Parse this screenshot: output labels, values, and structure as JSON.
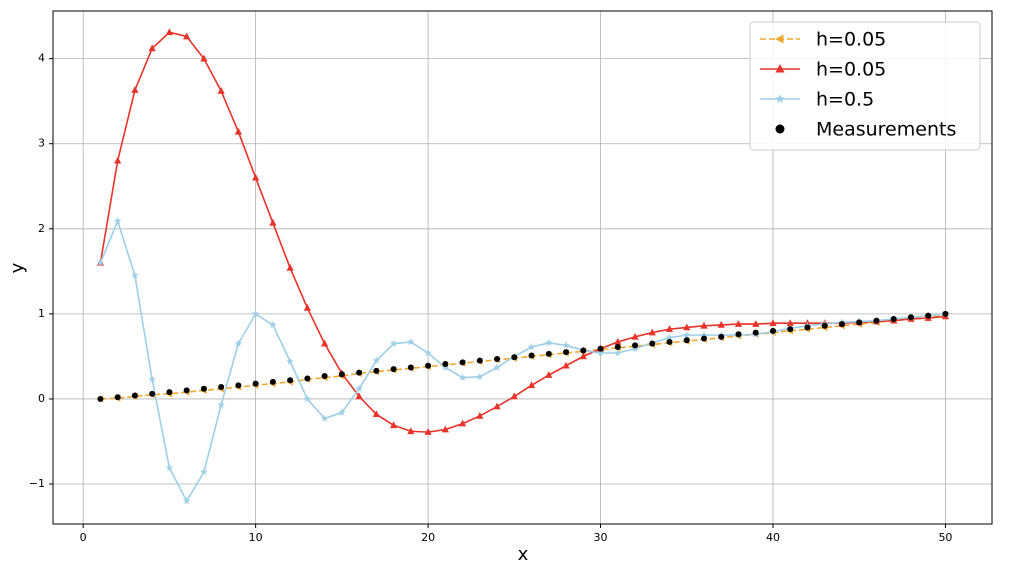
{
  "chart_data": {
    "type": "line",
    "xlabel": "x",
    "ylabel": "y",
    "x": [
      1,
      2,
      3,
      4,
      5,
      6,
      7,
      8,
      9,
      10,
      11,
      12,
      13,
      14,
      15,
      16,
      17,
      18,
      19,
      20,
      21,
      22,
      23,
      24,
      25,
      26,
      27,
      28,
      29,
      30,
      31,
      32,
      33,
      34,
      35,
      36,
      37,
      38,
      39,
      40,
      41,
      42,
      43,
      44,
      45,
      46,
      47,
      48,
      49,
      50
    ],
    "series": [
      {
        "name": "h=0.05",
        "color": "#f0a830",
        "marker": "<",
        "linestyle": "dashed",
        "values": [
          0,
          0.01,
          0.03,
          0.05,
          0.06,
          0.08,
          0.1,
          0.12,
          0.14,
          0.16,
          0.18,
          0.2,
          0.23,
          0.25,
          0.27,
          0.3,
          0.32,
          0.34,
          0.36,
          0.38,
          0.4,
          0.42,
          0.44,
          0.46,
          0.48,
          0.5,
          0.52,
          0.54,
          0.56,
          0.58,
          0.6,
          0.62,
          0.64,
          0.66,
          0.68,
          0.7,
          0.72,
          0.74,
          0.76,
          0.78,
          0.8,
          0.82,
          0.84,
          0.86,
          0.88,
          0.9,
          0.92,
          0.94,
          0.96,
          0.98
        ]
      },
      {
        "name": "h=0.05",
        "color": "#e8332a",
        "marker": "^",
        "linestyle": "solid",
        "values": [
          1.6,
          2.8,
          3.63,
          4.12,
          4.31,
          4.26,
          4.0,
          3.62,
          3.14,
          2.6,
          2.07,
          1.54,
          1.07,
          0.65,
          0.3,
          0.03,
          -0.18,
          -0.31,
          -0.38,
          -0.39,
          -0.36,
          -0.29,
          -0.2,
          -0.09,
          0.03,
          0.16,
          0.28,
          0.39,
          0.5,
          0.59,
          0.67,
          0.73,
          0.78,
          0.82,
          0.84,
          0.86,
          0.87,
          0.88,
          0.88,
          0.89,
          0.89,
          0.89,
          0.89,
          0.89,
          0.9,
          0.91,
          0.92,
          0.94,
          0.95,
          0.97
        ]
      },
      {
        "name": "h=0.5",
        "color": "#9ecfe8",
        "marker": "*",
        "linestyle": "solid",
        "values": [
          1.6,
          2.09,
          1.45,
          0.23,
          -0.81,
          -1.2,
          -0.86,
          -0.07,
          0.65,
          1.0,
          0.87,
          0.44,
          0.0,
          -0.23,
          -0.16,
          0.12,
          0.45,
          0.65,
          0.67,
          0.54,
          0.37,
          0.25,
          0.26,
          0.37,
          0.5,
          0.61,
          0.66,
          0.63,
          0.57,
          0.54,
          0.54,
          0.59,
          0.66,
          0.72,
          0.75,
          0.75,
          0.75,
          0.75,
          0.76,
          0.79,
          0.83,
          0.86,
          0.88,
          0.9,
          0.91,
          0.92,
          0.94,
          0.96,
          0.98,
          1.0
        ]
      },
      {
        "name": "Measurements",
        "color": "#000000",
        "marker": "o",
        "linestyle": "none",
        "values": [
          0,
          0.02,
          0.04,
          0.06,
          0.08,
          0.1,
          0.12,
          0.14,
          0.16,
          0.18,
          0.2,
          0.22,
          0.24,
          0.27,
          0.29,
          0.31,
          0.33,
          0.35,
          0.37,
          0.39,
          0.41,
          0.43,
          0.45,
          0.47,
          0.49,
          0.51,
          0.53,
          0.55,
          0.57,
          0.59,
          0.61,
          0.63,
          0.65,
          0.67,
          0.69,
          0.71,
          0.73,
          0.76,
          0.78,
          0.8,
          0.82,
          0.84,
          0.86,
          0.88,
          0.9,
          0.92,
          0.94,
          0.96,
          0.98,
          1.0
        ]
      }
    ],
    "xlim": [
      -1.75,
      52.7
    ],
    "ylim": [
      -1.47,
      4.56
    ],
    "xticks": [
      0,
      10,
      20,
      30,
      40,
      50
    ],
    "yticks": [
      {
        "value": -1,
        "label": "−1"
      },
      0,
      1,
      2,
      3,
      4
    ],
    "grid": true,
    "legend": "upper right"
  }
}
